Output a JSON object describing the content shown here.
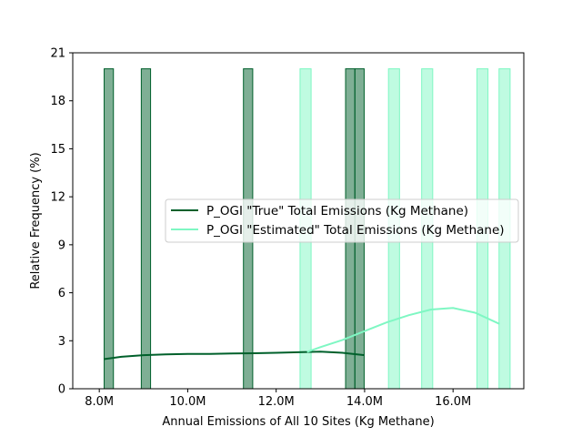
{
  "chart_data": {
    "type": "histogram",
    "title": "",
    "xlabel": "Annual Emissions of All 10 Sites (Kg Methane)",
    "ylabel": "Relative Frequency (%)",
    "xlim": [
      7.4,
      17.6
    ],
    "ylim": [
      0,
      21
    ],
    "x_unit": "M",
    "xticks": [
      8,
      10,
      12,
      14,
      16
    ],
    "xtick_labels": [
      "8.0M",
      "10.0M",
      "12.0M",
      "14.0M",
      "16.0M"
    ],
    "yticks": [
      0,
      3,
      6,
      9,
      12,
      15,
      18,
      21
    ],
    "ytick_labels": [
      "0",
      "3",
      "6",
      "9",
      "12",
      "15",
      "18",
      "21"
    ],
    "grid": false,
    "legend_position": "center-right",
    "series": [
      {
        "name": "P_OGI \"True\" Total Emissions (Kg Methane)",
        "color": "#00602b",
        "bin_width": 0.21,
        "bins": [
          {
            "x": 7.9,
            "y": 0
          },
          {
            "x": 8.11,
            "y": 20
          },
          {
            "x": 8.74,
            "y": 0
          },
          {
            "x": 8.95,
            "y": 20
          },
          {
            "x": 11.26,
            "y": 20
          },
          {
            "x": 13.57,
            "y": 20
          },
          {
            "x": 13.78,
            "y": 20
          }
        ],
        "kde": {
          "x": [
            8.1,
            8.5,
            9.0,
            9.5,
            10.0,
            10.5,
            11.0,
            11.5,
            12.0,
            12.5,
            13.0,
            13.5,
            14.0
          ],
          "y": [
            1.85,
            2.0,
            2.1,
            2.15,
            2.18,
            2.18,
            2.2,
            2.22,
            2.25,
            2.28,
            2.32,
            2.25,
            2.1
          ]
        }
      },
      {
        "name": "P_OGI \"Estimated\" Total Emissions (Kg Methane)",
        "color": "#7ff7c3",
        "bin_width": 0.25,
        "bins": [
          {
            "x": 12.54,
            "y": 20
          },
          {
            "x": 14.54,
            "y": 20
          },
          {
            "x": 15.29,
            "y": 20
          },
          {
            "x": 16.54,
            "y": 20
          },
          {
            "x": 17.04,
            "y": 20
          }
        ],
        "kde": {
          "x": [
            12.7,
            13.0,
            13.5,
            14.0,
            14.5,
            15.0,
            15.5,
            16.0,
            16.5,
            17.05
          ],
          "y": [
            2.3,
            2.6,
            3.05,
            3.6,
            4.15,
            4.6,
            4.95,
            5.05,
            4.75,
            4.05
          ]
        }
      }
    ]
  }
}
